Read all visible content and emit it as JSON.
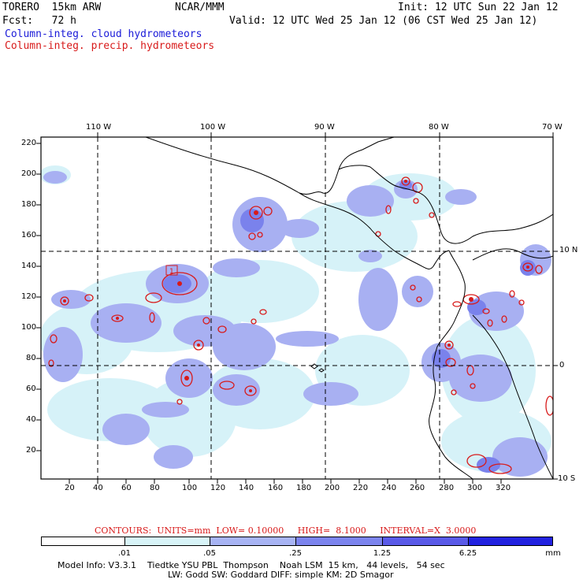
{
  "header": {
    "model": "TORERO  15km ARW",
    "org": "NCAR/MMM",
    "init": "Init: 12 UTC Sun 22 Jan 12",
    "fcst": "Fcst:   72 h",
    "valid": "Valid: 12 UTC Wed 25 Jan 12 (06 CST Wed 25 Jan 12)",
    "field_cloud": "Column-integ. cloud hydrometeors",
    "field_precip": "Column-integ. precip. hydrometeors"
  },
  "map": {
    "lon_labels": [
      "110 W",
      "100 W",
      "90 W",
      "80 W",
      "70 W"
    ],
    "lat_labels": [
      "10 N",
      "0",
      "10 S"
    ],
    "y_ticks": [
      "220",
      "200",
      "180",
      "160",
      "140",
      "120",
      "100",
      "80",
      "60",
      "40",
      "20"
    ],
    "x_ticks": [
      "20",
      "40",
      "60",
      "80",
      "100",
      "120",
      "140",
      "160",
      "180",
      "200",
      "220",
      "240",
      "260",
      "280",
      "300",
      "320"
    ],
    "box_label": "1"
  },
  "contour_info": {
    "text": "CONTOURS:  UNITS=mm  LOW= 0.10000     HIGH=  8.1000     INTERVAL=X  3.0000"
  },
  "colorbar": {
    "labels": [
      ".01",
      ".05",
      ".25",
      "1.25",
      "6.25"
    ],
    "unit": "mm",
    "colors": [
      "#ffffff",
      "#d8f4f8",
      "#a8b4f4",
      "#7c84ee",
      "#5a5ae8",
      "#2222e0"
    ]
  },
  "footer": {
    "line1": "Model Info: V3.3.1    Tiedtke YSU PBL  Thompson    Noah LSM  15 km,   44 levels,   54 sec",
    "line2": "LW: Godd SW: Goddard DIFF: simple KM: 2D Smagor"
  }
}
